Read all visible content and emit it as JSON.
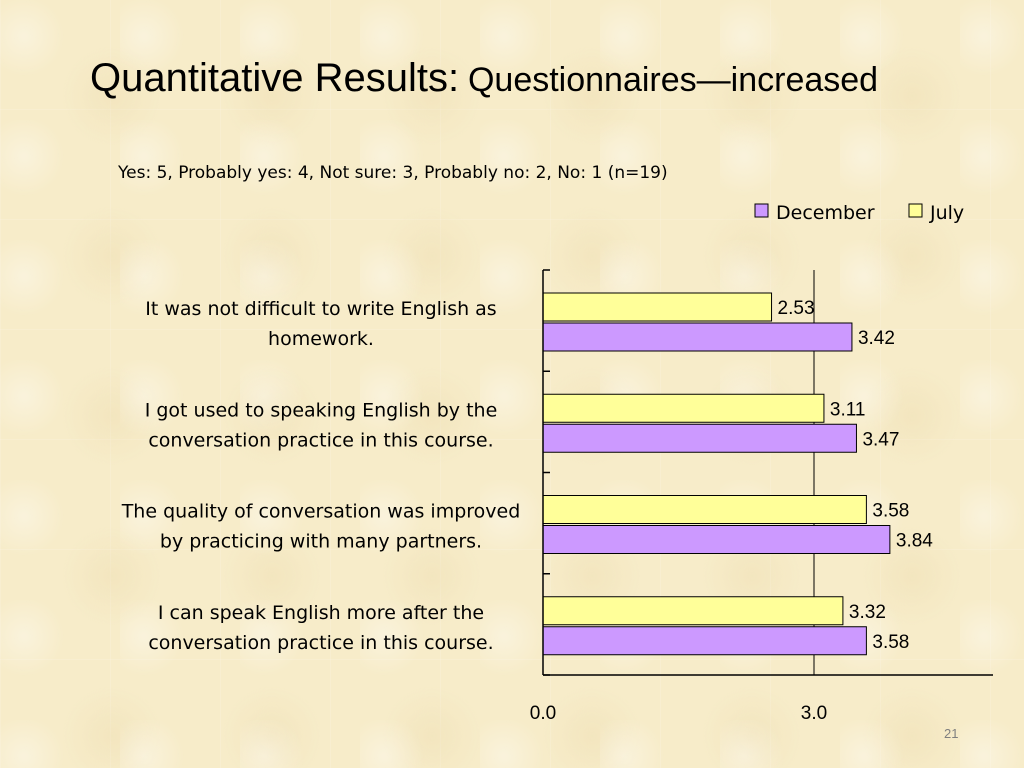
{
  "slide": {
    "title_main": "Quantitative Results",
    "title_colon": ":",
    "title_sub": "Questionnaires—increased",
    "scale_note": "Yes: 5, Probably yes: 4, Not sure: 3, Probably no: 2, No: 1  (n=19)",
    "page_number": "21"
  },
  "colors": {
    "december": "#cc99ff",
    "july": "#ffff99",
    "axis": "#000000"
  },
  "chart_data": {
    "type": "bar",
    "orientation": "horizontal",
    "categories": [
      [
        "It was not difficult to write English as",
        "homework."
      ],
      [
        "I got used to speaking English by the",
        "conversation practice in this course."
      ],
      [
        "The quality of conversation was improved",
        "by practicing with many partners."
      ],
      [
        "I can speak English more after the",
        "conversation practice in this course."
      ]
    ],
    "series": [
      {
        "name": "July",
        "values": [
          2.53,
          3.11,
          3.58,
          3.32
        ],
        "labels": [
          "2.53",
          "3.11",
          "3.58",
          "3.32"
        ]
      },
      {
        "name": "December",
        "values": [
          3.42,
          3.47,
          3.84,
          3.58
        ],
        "labels": [
          "3.42",
          "3.47",
          "3.84",
          "3.58"
        ]
      }
    ],
    "legend": [
      {
        "name": "December"
      },
      {
        "name": "July"
      }
    ],
    "legend_position": "top-right",
    "xlim": [
      0,
      4.6
    ],
    "xticks": [
      0,
      3
    ],
    "xtick_labels": [
      "0.0",
      "3.0"
    ],
    "reference_line": 3.0
  }
}
